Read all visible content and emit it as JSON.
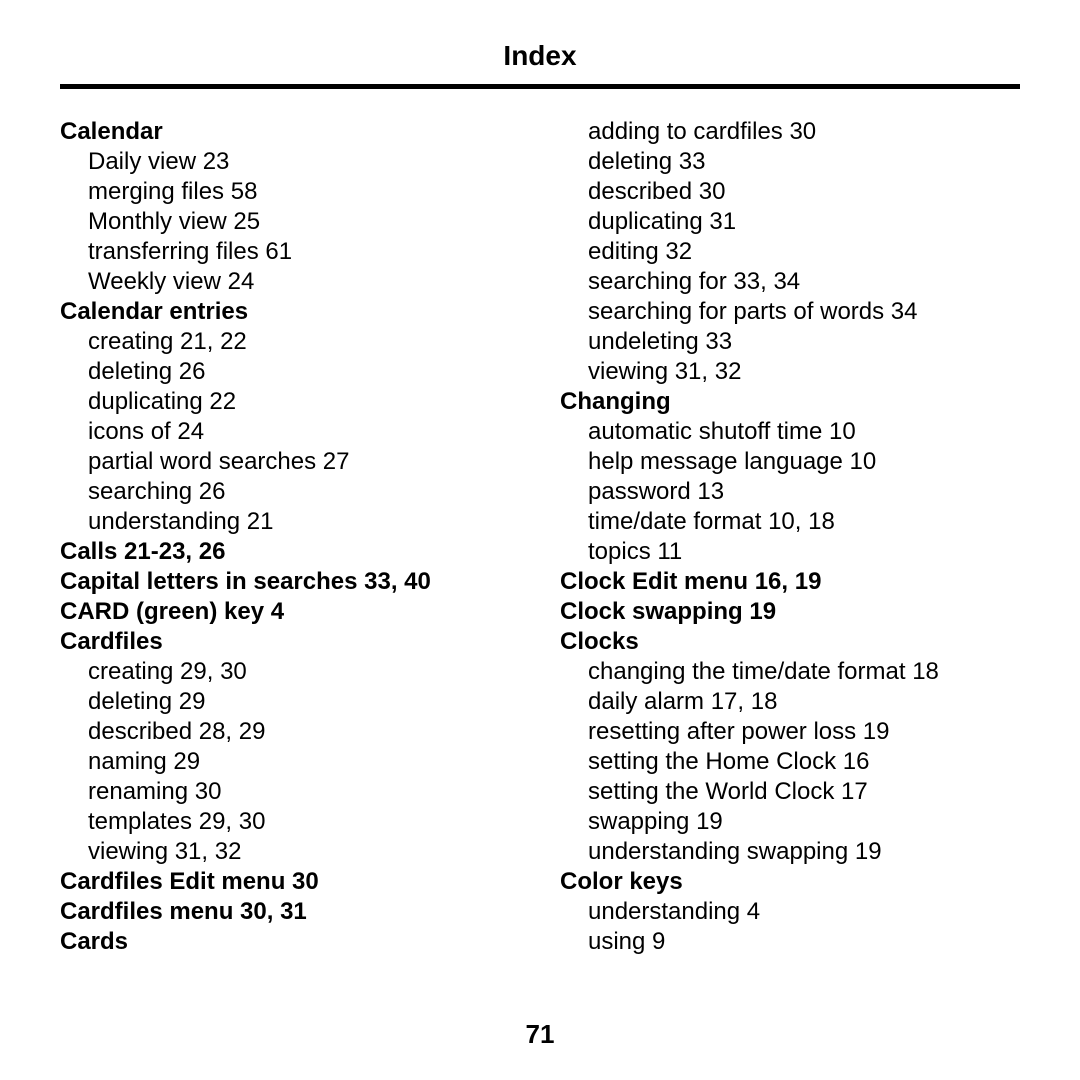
{
  "title": "Index",
  "page_number": "71",
  "left": [
    {
      "t": "h",
      "text": "Calendar"
    },
    {
      "t": "s",
      "text": "Daily view  23"
    },
    {
      "t": "s",
      "text": "merging files  58"
    },
    {
      "t": "s",
      "text": "Monthly view  25"
    },
    {
      "t": "s",
      "text": "transferring files  61"
    },
    {
      "t": "s",
      "text": "Weekly view  24"
    },
    {
      "t": "h",
      "text": "Calendar entries"
    },
    {
      "t": "s",
      "text": "creating  21,  22"
    },
    {
      "t": "s",
      "text": "deleting  26"
    },
    {
      "t": "s",
      "text": "duplicating  22"
    },
    {
      "t": "s",
      "text": "icons of  24"
    },
    {
      "t": "s",
      "text": "partial word searches  27"
    },
    {
      "t": "s",
      "text": "searching  26"
    },
    {
      "t": "s",
      "text": "understanding  21"
    },
    {
      "t": "h",
      "text": "Calls  21-23,  26"
    },
    {
      "t": "h",
      "text": "Capital letters in searches  33,  40"
    },
    {
      "t": "h",
      "text": "CARD (green) key  4"
    },
    {
      "t": "h",
      "text": "Cardfiles"
    },
    {
      "t": "s",
      "text": "creating  29,  30"
    },
    {
      "t": "s",
      "text": "deleting  29"
    },
    {
      "t": "s",
      "text": "described  28,  29"
    },
    {
      "t": "s",
      "text": "naming  29"
    },
    {
      "t": "s",
      "text": "renaming  30"
    },
    {
      "t": "s",
      "text": "templates  29,  30"
    },
    {
      "t": "s",
      "text": "viewing  31,  32"
    },
    {
      "t": "h",
      "text": "Cardfiles Edit menu  30"
    },
    {
      "t": "h",
      "text": "Cardfiles menu  30,  31"
    },
    {
      "t": "h",
      "text": "Cards"
    }
  ],
  "right": [
    {
      "t": "s",
      "text": "adding to cardfiles  30"
    },
    {
      "t": "s",
      "text": "deleting  33"
    },
    {
      "t": "s",
      "text": "described  30"
    },
    {
      "t": "s",
      "text": "duplicating  31"
    },
    {
      "t": "s",
      "text": "editing  32"
    },
    {
      "t": "s",
      "text": "searching for  33,  34"
    },
    {
      "t": "s",
      "text": "searching for parts of words  34"
    },
    {
      "t": "s",
      "text": "undeleting  33"
    },
    {
      "t": "s",
      "text": "viewing  31,  32"
    },
    {
      "t": "h",
      "text": "Changing"
    },
    {
      "t": "s",
      "text": "automatic shutoff time  10"
    },
    {
      "t": "s",
      "text": "help message language  10"
    },
    {
      "t": "s",
      "text": "password  13"
    },
    {
      "t": "s",
      "text": "time/date format  10,  18"
    },
    {
      "t": "s",
      "text": "topics  11"
    },
    {
      "t": "h",
      "text": "Clock Edit menu  16,  19"
    },
    {
      "t": "h",
      "text": "Clock swapping  19"
    },
    {
      "t": "h",
      "text": "Clocks"
    },
    {
      "t": "s",
      "text": "changing the time/date format  18"
    },
    {
      "t": "s",
      "text": "daily alarm  17,  18"
    },
    {
      "t": "s",
      "text": "resetting after power loss  19"
    },
    {
      "t": "s",
      "text": "setting the Home Clock  16"
    },
    {
      "t": "s",
      "text": "setting the World Clock  17"
    },
    {
      "t": "s",
      "text": "swapping  19"
    },
    {
      "t": "s",
      "text": "understanding swapping  19"
    },
    {
      "t": "h",
      "text": "Color keys"
    },
    {
      "t": "s",
      "text": "understanding  4"
    },
    {
      "t": "s",
      "text": "using  9"
    }
  ]
}
